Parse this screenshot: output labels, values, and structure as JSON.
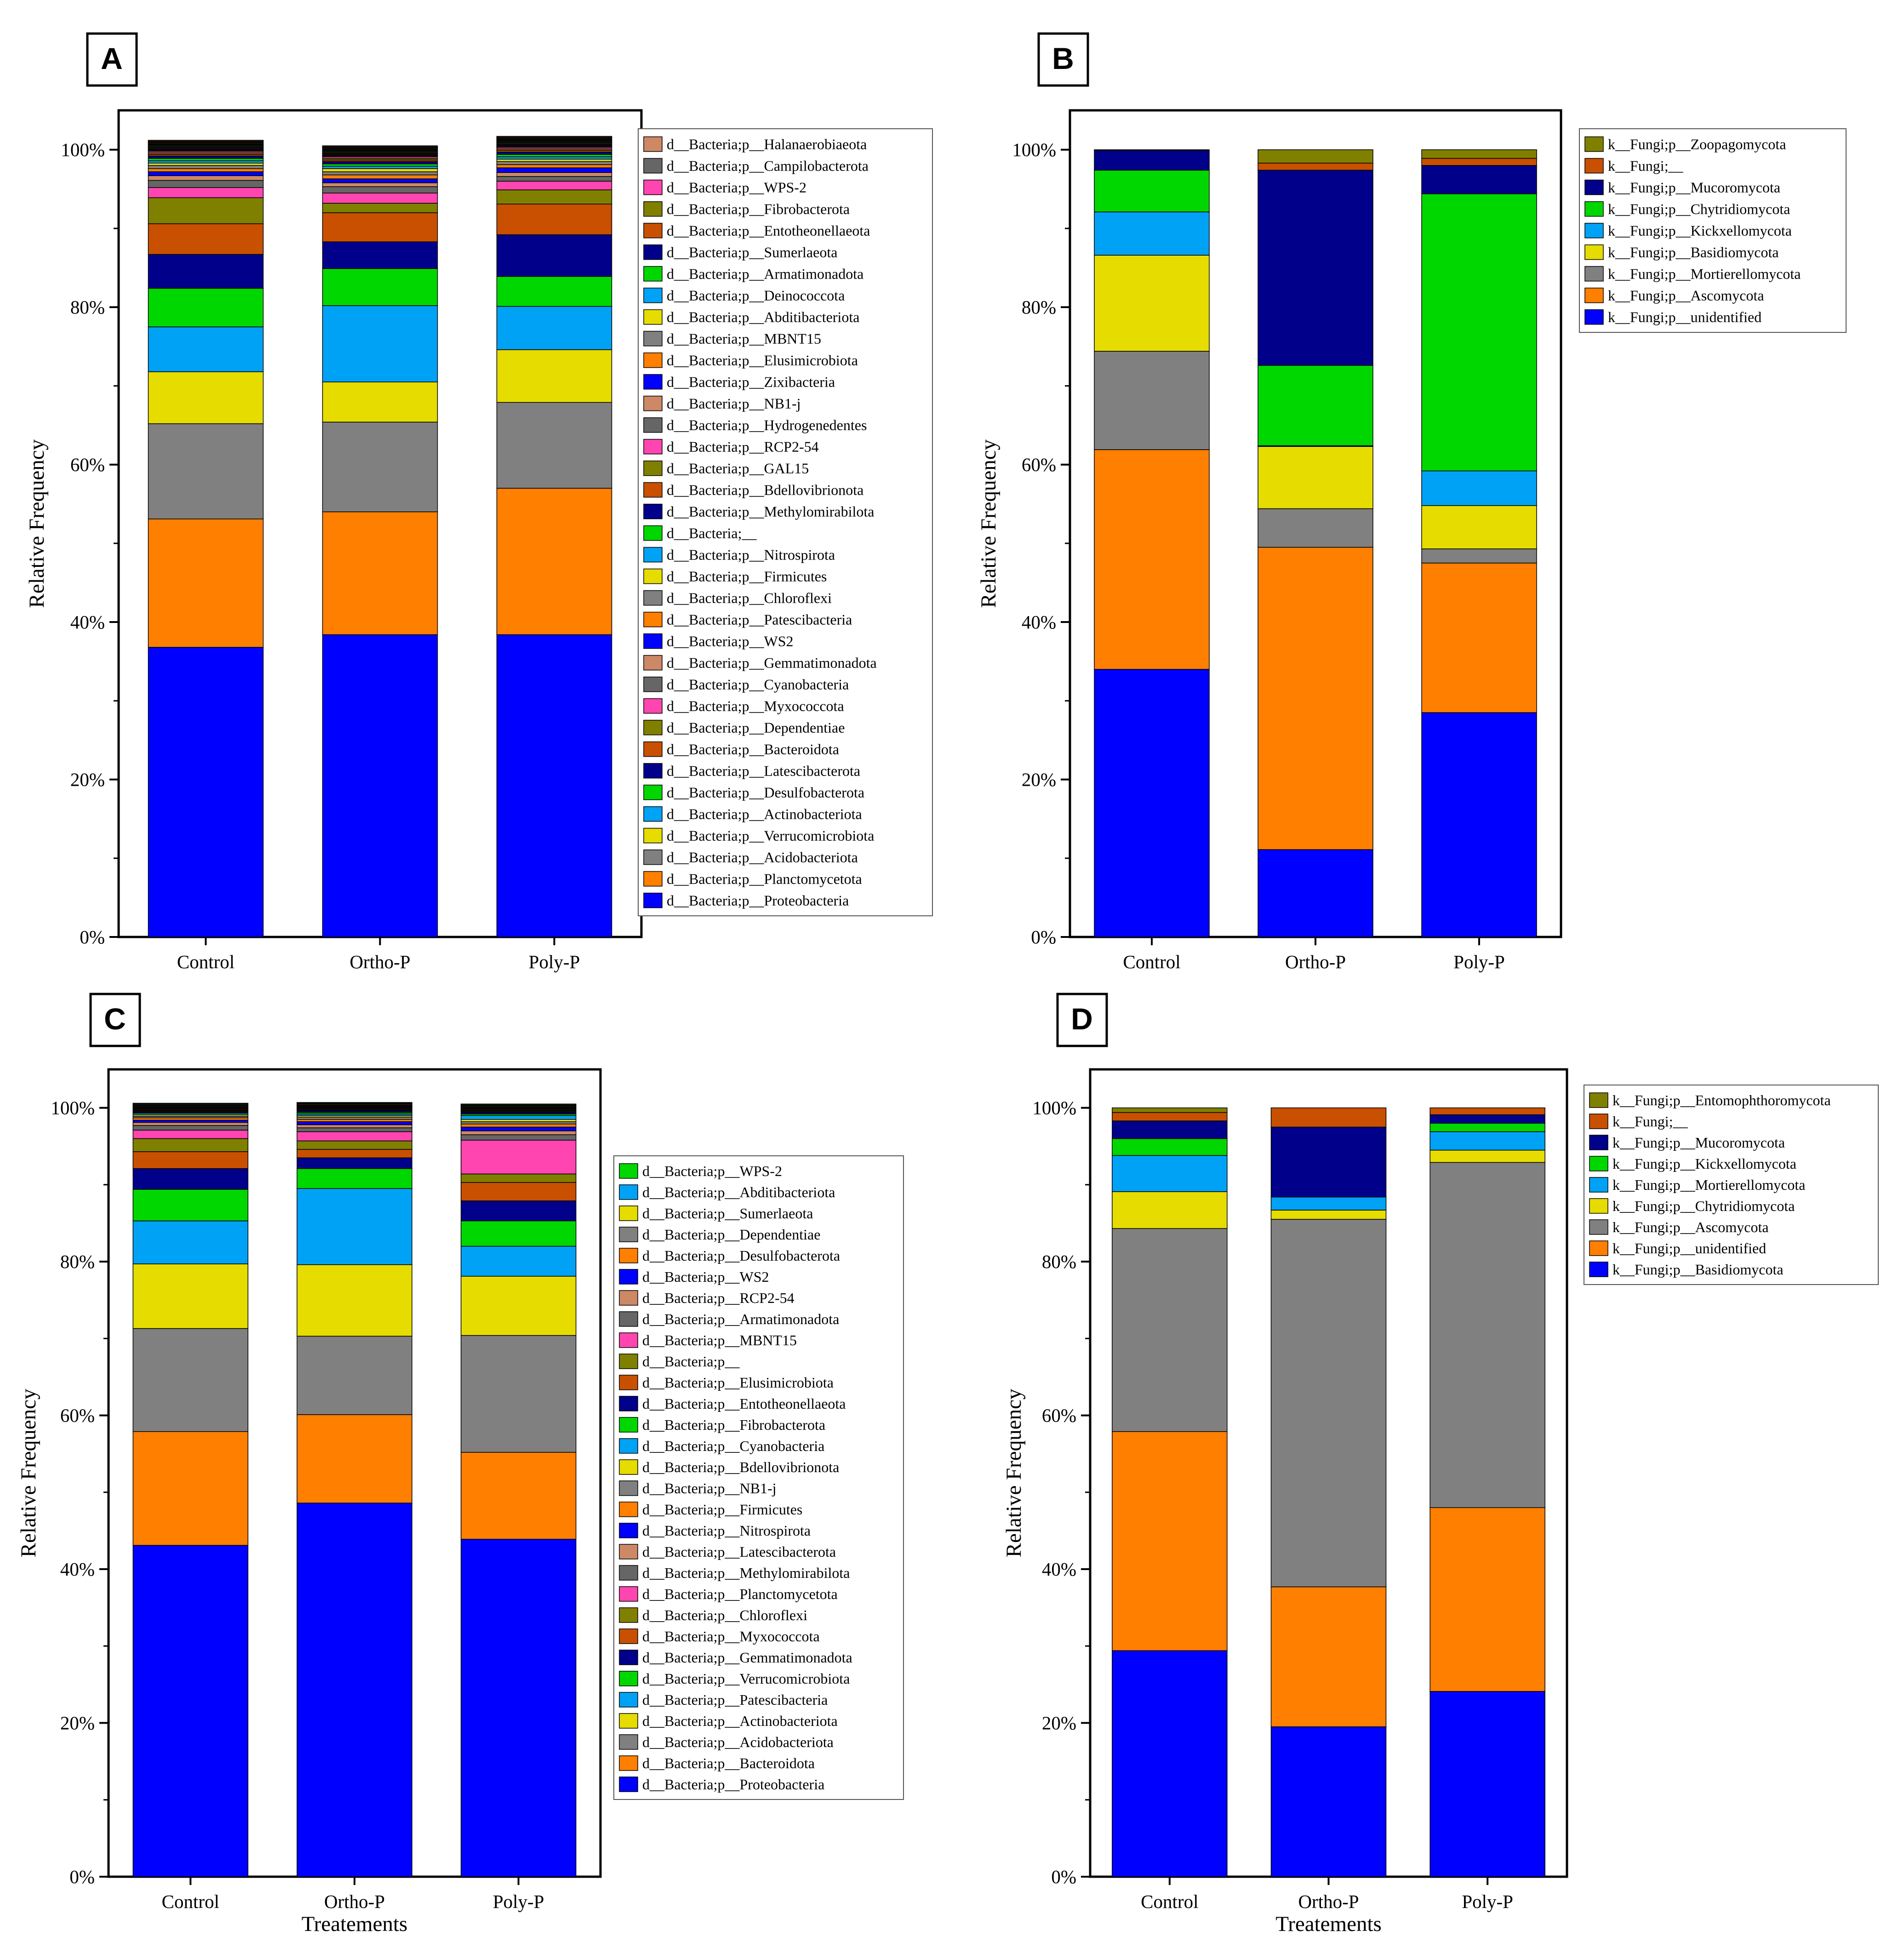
{
  "colors": {
    "blue": "#0000ff",
    "orange": "#ff7f00",
    "gray": "#808080",
    "yellow": "#e6dc00",
    "skyblue": "#00a2f5",
    "green": "#00d700",
    "navy": "#00008b",
    "rust": "#c85000",
    "olive": "#808000",
    "pink": "#ff45b0",
    "darkgray": "#666666",
    "tan": "#cd8866",
    "stroke": "#000000"
  },
  "chart_data": [
    {
      "panel": "A",
      "type": "bar",
      "stacked": true,
      "title": "",
      "xlabel": "",
      "ylabel": "Relative Frequency",
      "ylim": [
        0,
        100
      ],
      "yticks": [
        "0%",
        "20%",
        "40%",
        "60%",
        "80%",
        "100%"
      ],
      "categories": [
        "Control",
        "Ortho-P",
        "Poly-P"
      ],
      "series": [
        {
          "name": "d__Bacteria;p__Proteobacteria",
          "color": "blue",
          "values": [
            36.8,
            38.4,
            38.4
          ]
        },
        {
          "name": "d__Bacteria;p__Planctomycetota",
          "color": "orange",
          "values": [
            16.3,
            15.6,
            18.6
          ]
        },
        {
          "name": "d__Bacteria;p__Acidobacteriota",
          "color": "gray",
          "values": [
            12.1,
            11.4,
            10.9
          ]
        },
        {
          "name": "d__Bacteria;p__Verrucomicrobiota",
          "color": "yellow",
          "values": [
            6.6,
            5.1,
            6.7
          ]
        },
        {
          "name": "d__Bacteria;p__Actinobacteriota",
          "color": "skyblue",
          "values": [
            5.7,
            9.7,
            5.5
          ]
        },
        {
          "name": "d__Bacteria;p__Desulfobacterota",
          "color": "green",
          "values": [
            4.9,
            4.7,
            3.8
          ]
        },
        {
          "name": "d__Bacteria;p__Latescibacterota",
          "color": "navy",
          "values": [
            4.3,
            3.4,
            5.3
          ]
        },
        {
          "name": "d__Bacteria;p__Bacteroidota",
          "color": "rust",
          "values": [
            3.9,
            3.7,
            3.9
          ]
        },
        {
          "name": "d__Bacteria;p__Dependentiae",
          "color": "olive",
          "values": [
            3.3,
            1.2,
            1.8
          ]
        },
        {
          "name": "d__Bacteria;p__Myxococcota",
          "color": "pink",
          "values": [
            1.3,
            1.3,
            1.1
          ]
        },
        {
          "name": "d__Bacteria;p__Cyanobacteria",
          "color": "darkgray",
          "values": [
            0.9,
            0.8,
            0.6
          ]
        },
        {
          "name": "d__Bacteria;p__Gemmatimonadota",
          "color": "tan",
          "values": [
            0.6,
            0.5,
            0.5
          ]
        },
        {
          "name": "d__Bacteria;p__WS2",
          "color": "blue",
          "values": [
            0.5,
            0.5,
            0.6
          ]
        },
        {
          "name": "d__Bacteria;p__Patescibacteria",
          "color": "orange",
          "values": [
            0.4,
            0.5,
            0.4
          ]
        },
        {
          "name": "d__Bacteria;p__Chloroflexi",
          "color": "gray",
          "values": [
            0.4,
            0.4,
            0.4
          ]
        },
        {
          "name": "d__Bacteria;p__Firmicutes",
          "color": "yellow",
          "values": [
            0.3,
            0.4,
            0.3
          ]
        },
        {
          "name": "d__Bacteria;p__Nitrospirota",
          "color": "skyblue",
          "values": [
            0.3,
            0.3,
            0.3
          ]
        },
        {
          "name": "d__Bacteria;__",
          "color": "green",
          "values": [
            0.3,
            0.3,
            0.3
          ]
        },
        {
          "name": "d__Bacteria;p__Methylomirabilota",
          "color": "navy",
          "values": [
            0.3,
            0.3,
            0.3
          ]
        },
        {
          "name": "d__Bacteria;p__Bdellovibrionota",
          "color": "rust",
          "values": [
            0.2,
            0.2,
            0.2
          ]
        },
        {
          "name": "d__Bacteria;p__GAL15",
          "color": "olive",
          "values": [
            0.2,
            0.2,
            0.2
          ]
        },
        {
          "name": "d__Bacteria;p__RCP2-54",
          "color": "pink",
          "values": [
            0.2,
            0.2,
            0.2
          ]
        },
        {
          "name": "d__Bacteria;p__Hydrogenedentes",
          "color": "darkgray",
          "values": [
            0.1,
            0.1,
            0.1
          ]
        },
        {
          "name": "d__Bacteria;p__NB1-j",
          "color": "tan",
          "values": [
            0.1,
            0.1,
            0.1
          ]
        },
        {
          "name": "d__Bacteria;p__Zixibacteria",
          "color": "blue",
          "values": [
            0.1,
            0.1,
            0.1
          ]
        },
        {
          "name": "d__Bacteria;p__Elusimicrobiota",
          "color": "orange",
          "values": [
            0.1,
            0.1,
            0.1
          ]
        },
        {
          "name": "d__Bacteria;p__MBNT15",
          "color": "gray",
          "values": [
            0.1,
            0.1,
            0.1
          ]
        },
        {
          "name": "d__Bacteria;p__Abditibacteriota",
          "color": "yellow",
          "values": [
            0.1,
            0.1,
            0.1
          ]
        },
        {
          "name": "d__Bacteria;p__Deinococcota",
          "color": "skyblue",
          "values": [
            0.1,
            0.1,
            0.1
          ]
        },
        {
          "name": "d__Bacteria;p__Armatimonadota",
          "color": "green",
          "values": [
            0.1,
            0.1,
            0.1
          ]
        },
        {
          "name": "d__Bacteria;p__Sumerlaeota",
          "color": "navy",
          "values": [
            0.1,
            0.1,
            0.1
          ]
        },
        {
          "name": "d__Bacteria;p__Entotheonellaeota",
          "color": "rust",
          "values": [
            0.1,
            0.1,
            0.1
          ]
        },
        {
          "name": "d__Bacteria;p__Fibrobacterota",
          "color": "olive",
          "values": [
            0.1,
            0.1,
            0.1
          ]
        },
        {
          "name": "d__Bacteria;p__WPS-2",
          "color": "pink",
          "values": [
            0.1,
            0.1,
            0.1
          ]
        },
        {
          "name": "d__Bacteria;p__Campilobacterota",
          "color": "darkgray",
          "values": [
            0.1,
            0.1,
            0.1
          ]
        },
        {
          "name": "d__Bacteria;p__Halanaerobiaeota",
          "color": "tan",
          "values": [
            0.1,
            0.1,
            0.1
          ]
        }
      ]
    },
    {
      "panel": "B",
      "type": "bar",
      "stacked": true,
      "title": "",
      "xlabel": "",
      "ylabel": "Relative Frequency",
      "ylim": [
        0,
        100
      ],
      "yticks": [
        "0%",
        "20%",
        "40%",
        "60%",
        "80%",
        "100%"
      ],
      "categories": [
        "Control",
        "Ortho-P",
        "Poly-P"
      ],
      "series": [
        {
          "name": "k__Fungi;p__unidentified",
          "color": "blue",
          "values": [
            34.0,
            11.1,
            28.5
          ]
        },
        {
          "name": "k__Fungi;p__Ascomycota",
          "color": "orange",
          "values": [
            27.9,
            38.4,
            19.0
          ]
        },
        {
          "name": "k__Fungi;p__Mortierellomycota",
          "color": "gray",
          "values": [
            12.5,
            4.9,
            1.8
          ]
        },
        {
          "name": "k__Fungi;p__Basidiomycota",
          "color": "yellow",
          "values": [
            12.2,
            7.9,
            5.5
          ]
        },
        {
          "name": "k__Fungi;p__Kickxellomycota",
          "color": "skyblue",
          "values": [
            5.5,
            0.1,
            4.4
          ]
        },
        {
          "name": "k__Fungi;p__Chytridiomycota",
          "color": "green",
          "values": [
            5.3,
            10.2,
            35.2
          ]
        },
        {
          "name": "k__Fungi;p__Mucoromycota",
          "color": "navy",
          "values": [
            2.5,
            24.8,
            3.6
          ]
        },
        {
          "name": "k__Fungi;__",
          "color": "rust",
          "values": [
            0.0,
            0.9,
            0.9
          ]
        },
        {
          "name": "k__Fungi;p__Zoopagomycota",
          "color": "olive",
          "values": [
            0.1,
            1.7,
            1.1
          ]
        }
      ]
    },
    {
      "panel": "C",
      "type": "bar",
      "stacked": true,
      "title": "",
      "xlabel": "Treatements",
      "ylabel": "Relative Frequency",
      "ylim": [
        0,
        100
      ],
      "yticks": [
        "0%",
        "20%",
        "40%",
        "60%",
        "80%",
        "100%"
      ],
      "categories": [
        "Control",
        "Ortho-P",
        "Poly-P"
      ],
      "series": [
        {
          "name": "d__Bacteria;p__Proteobacteria",
          "color": "blue",
          "values": [
            43.1,
            48.6,
            43.9
          ]
        },
        {
          "name": "d__Bacteria;p__Bacteroidota",
          "color": "orange",
          "values": [
            14.8,
            11.5,
            11.3
          ]
        },
        {
          "name": "d__Bacteria;p__Acidobacteriota",
          "color": "gray",
          "values": [
            13.4,
            10.2,
            15.2
          ]
        },
        {
          "name": "d__Bacteria;p__Actinobacteriota",
          "color": "yellow",
          "values": [
            8.4,
            9.3,
            7.7
          ]
        },
        {
          "name": "d__Bacteria;p__Patescibacteria",
          "color": "skyblue",
          "values": [
            5.6,
            9.9,
            3.9
          ]
        },
        {
          "name": "d__Bacteria;p__Verrucomicrobiota",
          "color": "green",
          "values": [
            4.1,
            2.6,
            3.3
          ]
        },
        {
          "name": "d__Bacteria;p__Gemmatimonadota",
          "color": "navy",
          "values": [
            2.7,
            1.4,
            2.6
          ]
        },
        {
          "name": "d__Bacteria;p__Myxococcota",
          "color": "rust",
          "values": [
            2.2,
            1.1,
            2.4
          ]
        },
        {
          "name": "d__Bacteria;p__Chloroflexi",
          "color": "olive",
          "values": [
            1.7,
            1.1,
            1.1
          ]
        },
        {
          "name": "d__Bacteria;p__Planctomycetota",
          "color": "pink",
          "values": [
            1.1,
            1.2,
            4.4
          ]
        },
        {
          "name": "d__Bacteria;p__Methylomirabilota",
          "color": "darkgray",
          "values": [
            0.6,
            0.5,
            0.7
          ]
        },
        {
          "name": "d__Bacteria;p__Latescibacterota",
          "color": "tan",
          "values": [
            0.4,
            0.4,
            0.5
          ]
        },
        {
          "name": "d__Bacteria;p__Nitrospirota",
          "color": "blue",
          "values": [
            0.3,
            0.4,
            0.5
          ]
        },
        {
          "name": "d__Bacteria;p__Firmicutes",
          "color": "orange",
          "values": [
            0.3,
            0.3,
            0.4
          ]
        },
        {
          "name": "d__Bacteria;p__NB1-j",
          "color": "gray",
          "values": [
            0.2,
            0.3,
            0.3
          ]
        },
        {
          "name": "d__Bacteria;p__Bdellovibrionota",
          "color": "yellow",
          "values": [
            0.2,
            0.2,
            0.3
          ]
        },
        {
          "name": "d__Bacteria;p__Cyanobacteria",
          "color": "skyblue",
          "values": [
            0.2,
            0.2,
            0.5
          ]
        },
        {
          "name": "d__Bacteria;p__Fibrobacterota",
          "color": "green",
          "values": [
            0.1,
            0.2,
            0.2
          ]
        },
        {
          "name": "d__Bacteria;p__Entotheonellaeota",
          "color": "navy",
          "values": [
            0.1,
            0.2,
            0.2
          ]
        },
        {
          "name": "d__Bacteria;p__Elusimicrobiota",
          "color": "rust",
          "values": [
            0.1,
            0.1,
            0.1
          ]
        },
        {
          "name": "d__Bacteria;p__",
          "color": "olive",
          "values": [
            0.1,
            0.1,
            0.1
          ]
        },
        {
          "name": "d__Bacteria;p__MBNT15",
          "color": "pink",
          "values": [
            0.1,
            0.1,
            0.1
          ]
        },
        {
          "name": "d__Bacteria;p__Armatimonadota",
          "color": "darkgray",
          "values": [
            0.1,
            0.1,
            0.1
          ]
        },
        {
          "name": "d__Bacteria;p__RCP2-54",
          "color": "tan",
          "values": [
            0.1,
            0.1,
            0.1
          ]
        },
        {
          "name": "d__Bacteria;p__WS2",
          "color": "blue",
          "values": [
            0.1,
            0.1,
            0.1
          ]
        },
        {
          "name": "d__Bacteria;p__Desulfobacterota",
          "color": "orange",
          "values": [
            0.1,
            0.1,
            0.1
          ]
        },
        {
          "name": "d__Bacteria;p__Dependentiae",
          "color": "gray",
          "values": [
            0.1,
            0.1,
            0.1
          ]
        },
        {
          "name": "d__Bacteria;p__Sumerlaeota",
          "color": "yellow",
          "values": [
            0.1,
            0.1,
            0.1
          ]
        },
        {
          "name": "d__Bacteria;p__Abditibacteriota",
          "color": "skyblue",
          "values": [
            0.1,
            0.1,
            0.1
          ]
        },
        {
          "name": "d__Bacteria;p__WPS-2",
          "color": "green",
          "values": [
            0.1,
            0.1,
            0.1
          ]
        }
      ]
    },
    {
      "panel": "D",
      "type": "bar",
      "stacked": true,
      "title": "",
      "xlabel": "Treatements",
      "ylabel": "Relative Frequency",
      "ylim": [
        0,
        100
      ],
      "yticks": [
        "0%",
        "20%",
        "40%",
        "60%",
        "80%",
        "100%"
      ],
      "categories": [
        "Control",
        "Ortho-P",
        "Poly-P"
      ],
      "series": [
        {
          "name": "k__Fungi;p__Basidiomycota",
          "color": "blue",
          "values": [
            29.4,
            19.5,
            24.1
          ]
        },
        {
          "name": "k__Fungi;p__unidentified",
          "color": "orange",
          "values": [
            28.5,
            18.2,
            23.9
          ]
        },
        {
          "name": "k__Fungi;p__Ascomycota",
          "color": "gray",
          "values": [
            26.4,
            47.8,
            44.9
          ]
        },
        {
          "name": "k__Fungi;p__Chytridiomycota",
          "color": "yellow",
          "values": [
            4.8,
            1.2,
            1.6
          ]
        },
        {
          "name": "k__Fungi;p__Mortierellomycota",
          "color": "skyblue",
          "values": [
            4.7,
            1.7,
            2.4
          ]
        },
        {
          "name": "k__Fungi;p__Kickxellomycota",
          "color": "green",
          "values": [
            2.2,
            0.0,
            1.1
          ]
        },
        {
          "name": "k__Fungi;p__Mucoromycota",
          "color": "navy",
          "values": [
            2.3,
            9.1,
            1.1
          ]
        },
        {
          "name": "k__Fungi;__",
          "color": "rust",
          "values": [
            1.1,
            2.5,
            0.9
          ]
        },
        {
          "name": "k__Fungi;p__Entomophthoromycota",
          "color": "olive",
          "values": [
            0.6,
            0.0,
            0.0
          ]
        }
      ]
    }
  ]
}
